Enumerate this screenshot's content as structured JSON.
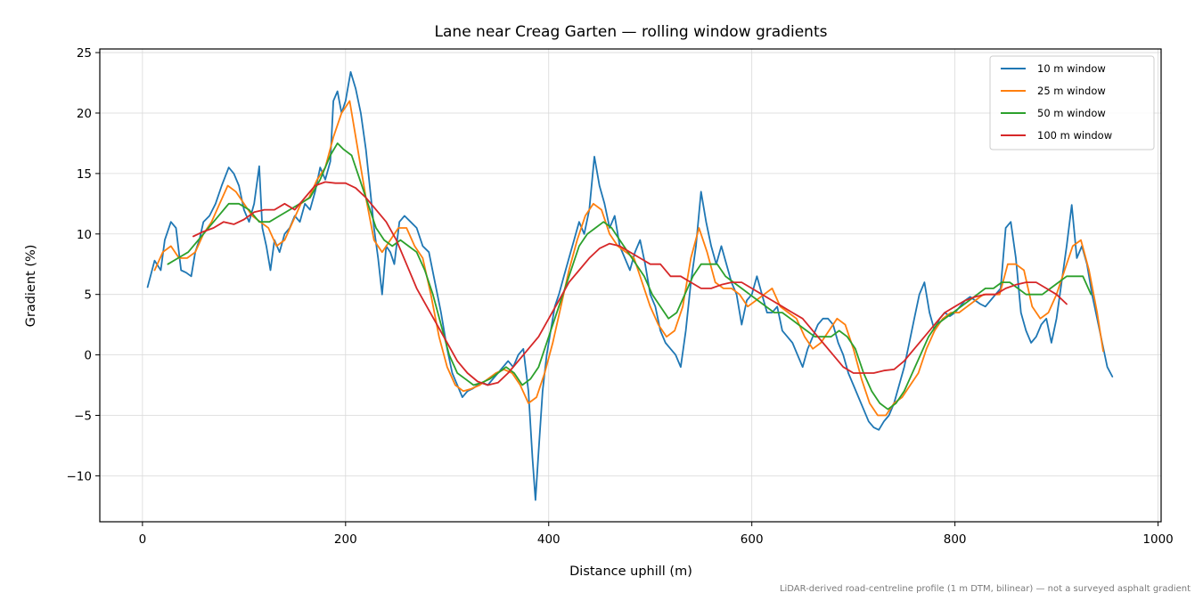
{
  "chart_data": {
    "type": "line",
    "title": "Lane near Creag Garten — rolling window gradients",
    "xlabel": "Distance uphill (m)",
    "ylabel": "Gradient (%)",
    "xlim": [
      -42,
      1003
    ],
    "ylim": [
      -13.8,
      25.3
    ],
    "xticks": [
      0,
      200,
      400,
      600,
      800,
      1000
    ],
    "yticks": [
      -10,
      -5,
      0,
      5,
      10,
      15,
      20,
      25
    ],
    "grid": true,
    "legend_position": "top-right",
    "footnote": "LiDAR-derived road-centreline profile (1 m DTM, bilinear) — not a surveyed asphalt gradient",
    "series": [
      {
        "name": "10 m window",
        "color": "#1f77b4",
        "x": [
          5,
          12,
          18,
          22,
          28,
          33,
          38,
          43,
          48,
          52,
          56,
          60,
          66,
          72,
          78,
          85,
          90,
          95,
          100,
          105,
          110,
          115,
          118,
          122,
          126,
          130,
          135,
          140,
          145,
          150,
          155,
          160,
          165,
          170,
          175,
          180,
          185,
          188,
          192,
          196,
          200,
          205,
          210,
          215,
          220,
          225,
          228,
          232,
          236,
          240,
          244,
          248,
          253,
          258,
          264,
          270,
          276,
          282,
          288,
          294,
          300,
          305,
          310,
          315,
          320,
          325,
          330,
          335,
          340,
          345,
          350,
          355,
          360,
          365,
          370,
          375,
          380,
          384,
          387,
          390,
          394,
          398,
          402,
          406,
          410,
          415,
          420,
          425,
          430,
          435,
          440,
          445,
          450,
          455,
          460,
          465,
          470,
          475,
          480,
          485,
          490,
          495,
          500,
          505,
          510,
          515,
          520,
          525,
          530,
          535,
          540,
          545,
          550,
          555,
          560,
          565,
          570,
          575,
          580,
          585,
          590,
          595,
          600,
          605,
          610,
          615,
          620,
          625,
          630,
          635,
          640,
          645,
          650,
          655,
          660,
          665,
          670,
          675,
          680,
          685,
          690,
          695,
          700,
          705,
          710,
          715,
          720,
          725,
          730,
          735,
          740,
          745,
          750,
          755,
          760,
          765,
          770,
          775,
          780,
          785,
          790,
          795,
          800,
          805,
          810,
          815,
          820,
          825,
          830,
          835,
          840,
          845,
          850,
          855,
          860,
          865,
          870,
          875,
          880,
          885,
          890,
          895,
          900,
          905,
          910,
          915,
          920,
          925,
          930,
          935,
          940,
          945,
          950,
          955
        ],
        "y": [
          5.6,
          7.8,
          7.0,
          9.5,
          11.0,
          10.5,
          7.0,
          6.8,
          6.5,
          8.5,
          9.5,
          11.0,
          11.5,
          12.5,
          14.0,
          15.5,
          15.0,
          14.0,
          12.0,
          11.0,
          12.5,
          15.6,
          10.5,
          9.0,
          7.0,
          9.5,
          8.5,
          10.0,
          10.5,
          11.5,
          11.0,
          12.5,
          12.0,
          13.5,
          15.5,
          14.5,
          16.0,
          21.0,
          21.8,
          20.0,
          21.0,
          23.4,
          22.0,
          20.0,
          17.0,
          13.0,
          10.5,
          8.0,
          5.0,
          9.0,
          8.5,
          7.5,
          11.0,
          11.5,
          11.0,
          10.5,
          9.0,
          8.5,
          6.0,
          3.5,
          0.5,
          -1.5,
          -2.5,
          -3.5,
          -3.0,
          -2.8,
          -2.5,
          -2.3,
          -2.5,
          -2.0,
          -1.5,
          -1.0,
          -0.5,
          -1.0,
          0.0,
          0.5,
          -3.0,
          -8.5,
          -12.0,
          -8.0,
          -3.0,
          0.0,
          2.0,
          4.0,
          5.0,
          6.5,
          8.0,
          9.5,
          11.0,
          10.0,
          12.0,
          16.4,
          14.0,
          12.5,
          10.5,
          11.5,
          9.0,
          8.0,
          7.0,
          8.5,
          9.5,
          7.5,
          5.0,
          4.0,
          2.0,
          1.0,
          0.5,
          0.0,
          -1.0,
          2.0,
          6.0,
          9.0,
          13.5,
          11.0,
          9.0,
          7.5,
          9.0,
          7.5,
          6.0,
          5.0,
          2.5,
          4.5,
          5.0,
          6.5,
          5.0,
          3.5,
          3.5,
          4.0,
          2.0,
          1.5,
          1.0,
          0.0,
          -1.0,
          0.5,
          1.5,
          2.5,
          3.0,
          3.0,
          2.5,
          1.0,
          0.0,
          -1.5,
          -2.5,
          -3.5,
          -4.5,
          -5.5,
          -6.0,
          -6.2,
          -5.5,
          -5.0,
          -4.0,
          -2.5,
          -1.0,
          1.0,
          3.0,
          5.0,
          6.0,
          3.5,
          2.0,
          3.0,
          3.5,
          3.2,
          3.5,
          4.0,
          4.5,
          4.8,
          4.5,
          4.2,
          4.0,
          4.5,
          5.0,
          5.5,
          10.5,
          11.0,
          8.0,
          3.5,
          2.0,
          1.0,
          1.5,
          2.5,
          3.0,
          1.0,
          3.0,
          6.0,
          9.0,
          12.4,
          8.0,
          9.0,
          7.5,
          5.0,
          3.0,
          1.0,
          -1.0,
          -1.8
        ]
      },
      {
        "name": "25 m window",
        "color": "#ff7f0e",
        "x": [
          12,
          20,
          28,
          36,
          44,
          52,
          60,
          68,
          76,
          84,
          92,
          100,
          108,
          116,
          124,
          132,
          140,
          148,
          156,
          164,
          172,
          180,
          188,
          196,
          204,
          212,
          220,
          228,
          236,
          244,
          252,
          260,
          268,
          276,
          284,
          292,
          300,
          308,
          316,
          324,
          332,
          340,
          348,
          356,
          364,
          372,
          380,
          388,
          396,
          404,
          412,
          420,
          428,
          436,
          444,
          452,
          460,
          468,
          476,
          484,
          492,
          500,
          508,
          516,
          524,
          532,
          540,
          548,
          556,
          564,
          572,
          580,
          588,
          596,
          604,
          612,
          620,
          628,
          636,
          644,
          652,
          660,
          668,
          676,
          684,
          692,
          700,
          708,
          716,
          724,
          732,
          740,
          748,
          756,
          764,
          772,
          780,
          788,
          796,
          804,
          812,
          820,
          828,
          836,
          844,
          852,
          860,
          868,
          876,
          884,
          892,
          900,
          908,
          916,
          924,
          932,
          940,
          946
        ],
        "y": [
          7.0,
          8.5,
          9.0,
          8.0,
          8.0,
          8.5,
          10.0,
          11.0,
          12.5,
          14.0,
          13.5,
          12.5,
          11.5,
          11.0,
          10.5,
          9.0,
          9.5,
          11.0,
          12.5,
          13.0,
          14.5,
          15.5,
          18.0,
          20.0,
          21.0,
          17.0,
          13.0,
          9.5,
          8.5,
          9.5,
          10.5,
          10.5,
          9.0,
          8.0,
          5.0,
          1.5,
          -1.0,
          -2.5,
          -3.0,
          -2.8,
          -2.5,
          -2.0,
          -1.5,
          -1.2,
          -1.5,
          -2.5,
          -4.0,
          -3.5,
          -1.5,
          1.0,
          4.0,
          7.0,
          9.5,
          11.5,
          12.5,
          12.0,
          10.0,
          9.0,
          8.5,
          8.0,
          6.0,
          4.0,
          2.5,
          1.5,
          2.0,
          4.0,
          8.0,
          10.5,
          8.5,
          6.0,
          5.5,
          5.5,
          5.0,
          4.0,
          4.5,
          5.0,
          5.5,
          4.0,
          3.5,
          3.0,
          1.5,
          0.5,
          1.0,
          2.0,
          3.0,
          2.5,
          0.5,
          -2.0,
          -4.0,
          -5.0,
          -5.0,
          -4.0,
          -3.5,
          -2.5,
          -1.5,
          0.5,
          2.0,
          3.0,
          3.5,
          3.5,
          4.0,
          4.5,
          5.0,
          5.0,
          5.0,
          7.5,
          7.5,
          7.0,
          4.0,
          3.0,
          3.5,
          5.0,
          7.0,
          9.0,
          9.5,
          7.0,
          3.5,
          0.3
        ]
      },
      {
        "name": "50 m window",
        "color": "#2ca02c",
        "x": [
          25,
          35,
          45,
          55,
          65,
          75,
          85,
          95,
          105,
          115,
          125,
          135,
          145,
          155,
          165,
          175,
          185,
          192,
          198,
          206,
          214,
          222,
          230,
          238,
          246,
          254,
          262,
          270,
          278,
          286,
          294,
          302,
          310,
          318,
          326,
          334,
          342,
          350,
          358,
          366,
          374,
          382,
          390,
          398,
          406,
          414,
          422,
          430,
          438,
          446,
          454,
          462,
          470,
          478,
          486,
          494,
          502,
          510,
          518,
          526,
          534,
          542,
          550,
          558,
          566,
          574,
          582,
          590,
          598,
          606,
          614,
          622,
          630,
          638,
          646,
          654,
          662,
          670,
          678,
          686,
          694,
          702,
          710,
          718,
          726,
          734,
          742,
          750,
          758,
          766,
          774,
          782,
          790,
          798,
          806,
          814,
          822,
          830,
          838,
          846,
          854,
          862,
          870,
          878,
          886,
          894,
          902,
          910,
          918,
          926,
          934
        ],
        "y": [
          7.5,
          8.0,
          8.5,
          9.5,
          10.5,
          11.5,
          12.5,
          12.5,
          12.0,
          11.0,
          11.0,
          11.5,
          12.0,
          12.5,
          13.0,
          14.5,
          16.5,
          17.5,
          17.0,
          16.5,
          14.5,
          12.5,
          10.5,
          9.5,
          9.0,
          9.5,
          9.0,
          8.5,
          7.0,
          5.0,
          2.5,
          0.0,
          -1.5,
          -2.0,
          -2.5,
          -2.3,
          -2.0,
          -1.5,
          -1.0,
          -1.5,
          -2.5,
          -2.0,
          -1.0,
          1.0,
          3.0,
          5.0,
          7.0,
          9.0,
          10.0,
          10.5,
          11.0,
          10.5,
          9.5,
          8.5,
          7.5,
          6.5,
          5.0,
          4.0,
          3.0,
          3.5,
          5.0,
          6.5,
          7.5,
          7.5,
          7.5,
          6.5,
          6.0,
          5.5,
          5.0,
          4.5,
          4.0,
          3.5,
          3.5,
          3.0,
          2.5,
          2.0,
          1.5,
          1.5,
          1.5,
          2.0,
          1.5,
          0.5,
          -1.5,
          -3.0,
          -4.0,
          -4.5,
          -4.0,
          -3.0,
          -1.5,
          0.0,
          1.5,
          2.5,
          3.0,
          3.5,
          4.0,
          4.5,
          5.0,
          5.5,
          5.5,
          6.0,
          6.0,
          5.5,
          5.0,
          5.0,
          5.0,
          5.5,
          6.0,
          6.5,
          6.5,
          6.5,
          5.0
        ]
      },
      {
        "name": "100 m window",
        "color": "#d62728",
        "x": [
          50,
          60,
          70,
          80,
          90,
          100,
          110,
          120,
          130,
          140,
          150,
          160,
          170,
          180,
          190,
          200,
          210,
          220,
          230,
          240,
          250,
          260,
          270,
          280,
          290,
          300,
          310,
          320,
          330,
          340,
          350,
          360,
          370,
          380,
          390,
          400,
          410,
          420,
          430,
          440,
          450,
          460,
          470,
          480,
          490,
          500,
          510,
          520,
          530,
          540,
          550,
          560,
          570,
          580,
          590,
          600,
          610,
          620,
          630,
          640,
          650,
          660,
          670,
          680,
          690,
          700,
          710,
          720,
          730,
          740,
          750,
          760,
          770,
          780,
          790,
          800,
          810,
          820,
          830,
          840,
          850,
          860,
          870,
          880,
          890,
          900,
          910
        ],
        "y": [
          9.8,
          10.2,
          10.5,
          11.0,
          10.8,
          11.2,
          11.8,
          12.0,
          12.0,
          12.5,
          12.0,
          13.0,
          14.0,
          14.3,
          14.2,
          14.2,
          13.8,
          13.0,
          12.0,
          11.0,
          9.5,
          7.5,
          5.5,
          4.0,
          2.5,
          1.0,
          -0.5,
          -1.5,
          -2.2,
          -2.5,
          -2.3,
          -1.5,
          -0.5,
          0.5,
          1.5,
          3.0,
          4.5,
          6.0,
          7.0,
          8.0,
          8.8,
          9.2,
          9.0,
          8.5,
          8.0,
          7.5,
          7.5,
          6.5,
          6.5,
          6.0,
          5.5,
          5.5,
          5.8,
          6.0,
          6.0,
          5.5,
          5.0,
          4.5,
          4.0,
          3.5,
          3.0,
          2.0,
          1.0,
          0.0,
          -1.0,
          -1.5,
          -1.5,
          -1.5,
          -1.3,
          -1.2,
          -0.5,
          0.5,
          1.5,
          2.5,
          3.5,
          4.0,
          4.5,
          4.8,
          5.0,
          5.0,
          5.5,
          5.8,
          6.0,
          6.0,
          5.5,
          5.0,
          4.2
        ]
      }
    ]
  }
}
